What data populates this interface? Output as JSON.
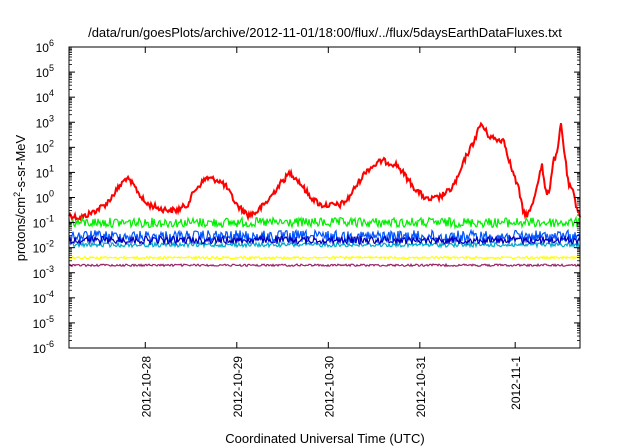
{
  "chart_data": {
    "type": "line",
    "title": "/data/run/goesPlots/archive/2012-11-01/18:00/flux/../flux/5daysEarthDataFluxes.txt",
    "xlabel": "Coordinated Universal Time (UTC)",
    "ylabel": {
      "main": "protons/cm",
      "exponent": "2",
      "rest": "-s-sr-MeV"
    },
    "x_range": [
      "2012-10-27T04:00",
      "2012-11-01T18:00"
    ],
    "x_ticks": [
      "2012-10-28",
      "2012-10-29",
      "2012-10-30",
      "2012-10-31",
      "2012-11-1"
    ],
    "y_scale": "log",
    "ylim": [
      1e-06,
      1000000.0
    ],
    "y_ticks": [
      {
        "base": "10",
        "exp": "-6"
      },
      {
        "base": "10",
        "exp": "-5"
      },
      {
        "base": "10",
        "exp": "-4"
      },
      {
        "base": "10",
        "exp": "-3"
      },
      {
        "base": "10",
        "exp": "-2"
      },
      {
        "base": "10",
        "exp": "-1"
      },
      {
        "base": "10",
        "exp": "0"
      },
      {
        "base": "10",
        "exp": "1"
      },
      {
        "base": "10",
        "exp": "2"
      },
      {
        "base": "10",
        "exp": "3"
      },
      {
        "base": "10",
        "exp": "4"
      },
      {
        "base": "10",
        "exp": "5"
      },
      {
        "base": "10",
        "exp": "6"
      }
    ],
    "grid": false,
    "series": [
      {
        "color": "#ff0000",
        "points": [
          [
            "2012-10-27T04:00",
            0.2
          ],
          [
            "2012-10-27T07:00",
            0.15
          ],
          [
            "2012-10-27T11:00",
            0.3
          ],
          [
            "2012-10-27T14:00",
            0.6
          ],
          [
            "2012-10-27T17:00",
            2.5
          ],
          [
            "2012-10-27T19:00",
            6
          ],
          [
            "2012-10-27T21:00",
            3
          ],
          [
            "2012-10-28T00:00",
            0.6
          ],
          [
            "2012-10-28T04:00",
            0.35
          ],
          [
            "2012-10-28T08:00",
            0.3
          ],
          [
            "2012-10-28T11:00",
            0.5
          ],
          [
            "2012-10-28T13:00",
            2
          ],
          [
            "2012-10-28T16:00",
            6
          ],
          [
            "2012-10-28T19:00",
            5
          ],
          [
            "2012-10-28T21:00",
            3
          ],
          [
            "2012-10-29T00:00",
            0.5
          ],
          [
            "2012-10-29T03:00",
            0.2
          ],
          [
            "2012-10-29T05:00",
            0.25
          ],
          [
            "2012-10-29T08:00",
            0.7
          ],
          [
            "2012-10-29T11:00",
            3
          ],
          [
            "2012-10-29T14:00",
            10
          ],
          [
            "2012-10-29T16:00",
            5
          ],
          [
            "2012-10-29T19:00",
            1.2
          ],
          [
            "2012-10-29T22:00",
            0.5
          ],
          [
            "2012-10-30T03:00",
            0.5
          ],
          [
            "2012-10-30T05:00",
            0.8
          ],
          [
            "2012-10-30T07:00",
            2.5
          ],
          [
            "2012-10-30T10:00",
            12
          ],
          [
            "2012-10-30T14:00",
            30
          ],
          [
            "2012-10-30T18:00",
            20
          ],
          [
            "2012-10-30T20:00",
            8
          ],
          [
            "2012-10-30T23:00",
            2
          ],
          [
            "2012-10-31T02:00",
            0.8
          ],
          [
            "2012-10-31T05:00",
            1
          ],
          [
            "2012-10-31T08:00",
            2
          ],
          [
            "2012-10-31T10:00",
            6
          ],
          [
            "2012-10-31T12:00",
            40
          ],
          [
            "2012-10-31T14:00",
            150
          ],
          [
            "2012-10-31T16:00",
            900
          ],
          [
            "2012-10-31T18:00",
            300
          ],
          [
            "2012-10-31T20:00",
            200
          ],
          [
            "2012-10-31T22:00",
            200
          ],
          [
            "2012-11-01T00:00",
            15
          ],
          [
            "2012-11-01T02:00",
            2
          ],
          [
            "2012-11-01T03:00",
            0.3
          ],
          [
            "2012-11-01T04:00",
            0.2
          ],
          [
            "2012-11-01T05:00",
            0.3
          ],
          [
            "2012-11-01T06:00",
            1
          ],
          [
            "2012-11-01T07:00",
            5
          ],
          [
            "2012-11-01T08:00",
            20
          ],
          [
            "2012-11-01T09:00",
            1.5
          ],
          [
            "2012-11-01T10:00",
            2
          ],
          [
            "2012-11-01T11:00",
            30
          ],
          [
            "2012-11-01T12:00",
            50
          ],
          [
            "2012-11-01T13:00",
            900
          ],
          [
            "2012-11-01T14:00",
            50
          ],
          [
            "2012-11-01T15:00",
            3
          ],
          [
            "2012-11-01T16:00",
            2
          ],
          [
            "2012-11-01T17:00",
            0.5
          ],
          [
            "2012-11-01T18:00",
            0.2
          ]
        ]
      },
      {
        "color": "#00ee00",
        "level": 0.1,
        "spread": 0.45
      },
      {
        "color": "#0055ff",
        "level": 0.028,
        "spread": 0.55
      },
      {
        "color": "#00aacc",
        "level": 0.013,
        "spread": 0.2
      },
      {
        "color": "#0000bb",
        "level": 0.02,
        "spread": 0.35
      },
      {
        "color": "#ffff00",
        "level": 0.004,
        "spread": 0.1
      },
      {
        "color": "#992266",
        "level": 0.002,
        "spread": 0.1
      }
    ]
  }
}
